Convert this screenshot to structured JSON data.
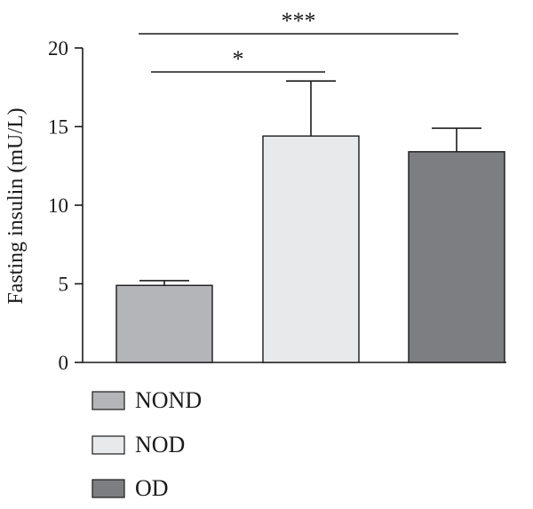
{
  "chart_data": {
    "type": "bar",
    "title": "",
    "xlabel": "",
    "ylabel": "Fasting insulin (mU/L)",
    "ylim": [
      0,
      20
    ],
    "yticks": [
      0,
      5,
      10,
      15,
      20
    ],
    "grid": false,
    "categories": [
      "NOND",
      "NOD",
      "OD"
    ],
    "values": [
      4.9,
      14.4,
      13.4
    ],
    "errors": [
      0.3,
      3.5,
      1.5
    ],
    "colors": [
      "#b4b5b8",
      "#e8e9ea",
      "#7d7e81"
    ],
    "legend": {
      "placement": "bottom-left",
      "entries": [
        "NOND",
        "NOD",
        "OD"
      ]
    },
    "significance": [
      {
        "from": 0,
        "to": 2,
        "label": "***"
      },
      {
        "from": 0,
        "to": 1,
        "label": "*"
      }
    ]
  }
}
